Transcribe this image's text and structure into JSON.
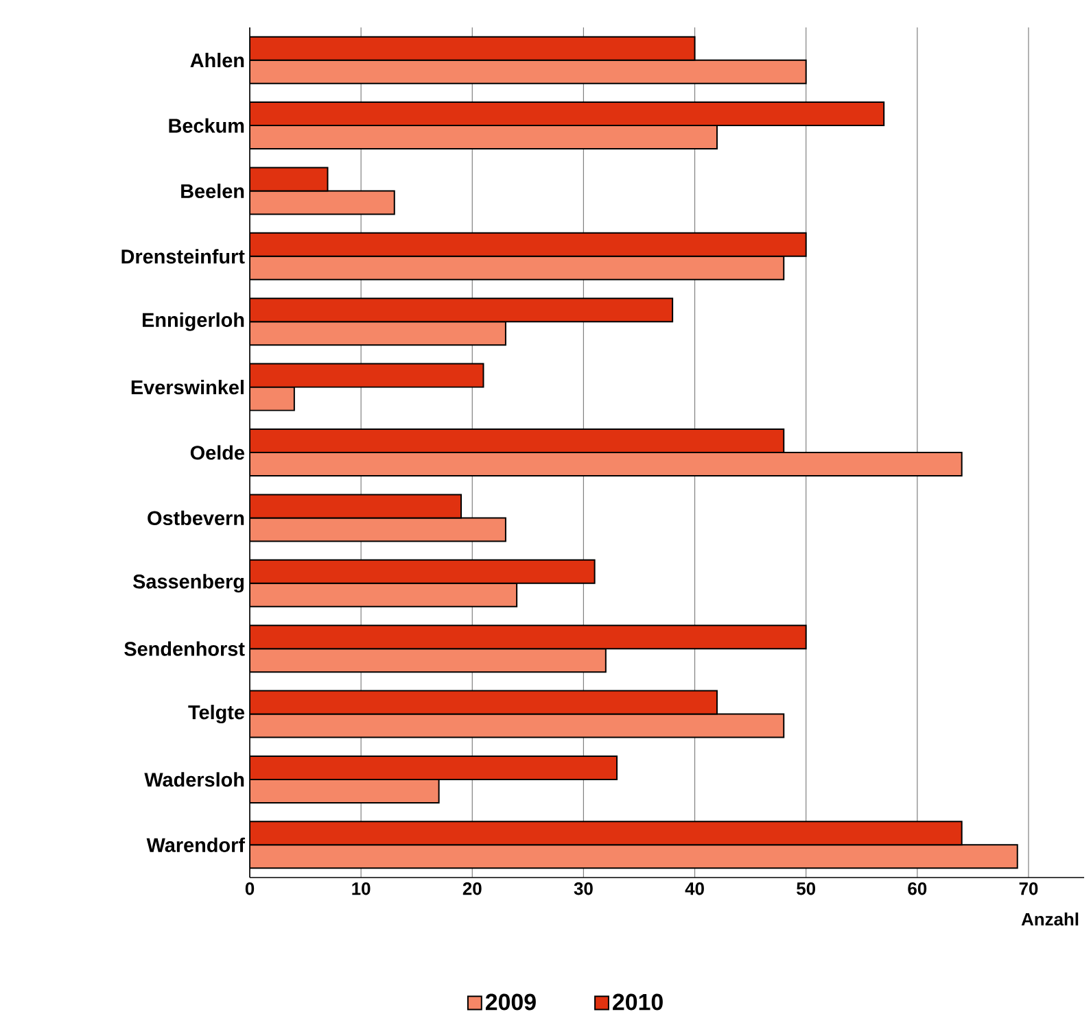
{
  "chart_data": {
    "type": "bar",
    "orientation": "horizontal",
    "xlabel": "Anzahl",
    "categories": [
      "Ahlen",
      "Beckum",
      "Beelen",
      "Drensteinfurt",
      "Ennigerloh",
      "Everswinkel",
      "Oelde",
      "Ostbevern",
      "Sassenberg",
      "Sendenhorst",
      "Telgte",
      "Wadersloh",
      "Warendorf"
    ],
    "series": [
      {
        "name": "2009",
        "color": "#f58767",
        "values": [
          50,
          42,
          13,
          48,
          23,
          4,
          64,
          23,
          24,
          32,
          48,
          17,
          69
        ]
      },
      {
        "name": "2010",
        "color": "#e03210",
        "values": [
          40,
          57,
          7,
          50,
          38,
          21,
          48,
          19,
          31,
          50,
          42,
          33,
          64
        ]
      }
    ],
    "xlim": [
      0,
      75
    ],
    "xticks": [
      0,
      10,
      20,
      30,
      40,
      50,
      60,
      70
    ],
    "grid": "x",
    "legend": "bottom"
  }
}
